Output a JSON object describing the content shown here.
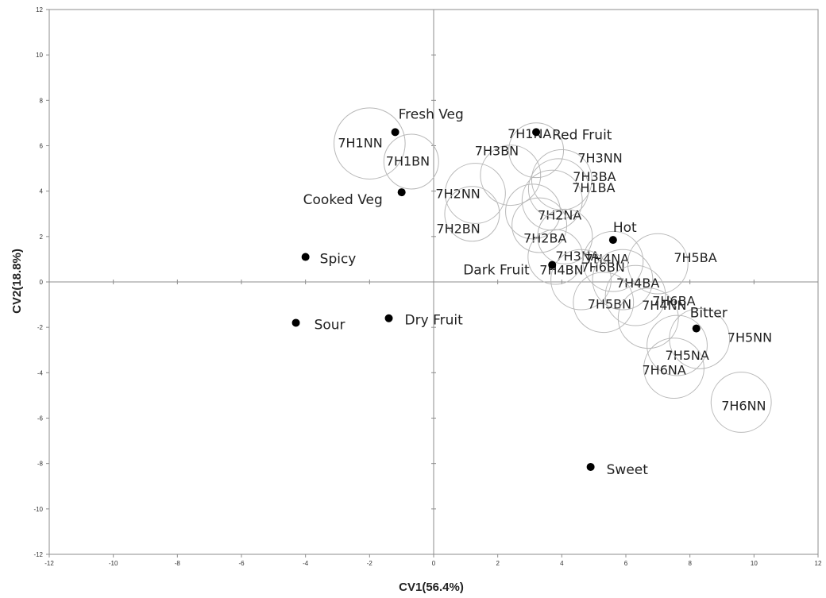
{
  "chart_data": {
    "type": "scatter",
    "xlabel": "CV1(56.4%)",
    "ylabel": "CV2(18.8%)",
    "xlim": [
      -12,
      12
    ],
    "ylim": [
      -12,
      12
    ],
    "x_ticks": [
      -12,
      -10,
      -8,
      -6,
      -4,
      -2,
      0,
      2,
      4,
      6,
      8,
      10,
      12
    ],
    "y_ticks": [
      -12,
      -10,
      -8,
      -6,
      -4,
      -2,
      0,
      2,
      4,
      6,
      8,
      10,
      12
    ],
    "grid": false,
    "legend": "none",
    "attribute_points": [
      {
        "label": "Fresh Veg",
        "x": -1.2,
        "y": 6.6
      },
      {
        "label": "Red Fruit",
        "x": 3.2,
        "y": 6.6
      },
      {
        "label": "Cooked Veg",
        "x": -1.0,
        "y": 3.95
      },
      {
        "label": "Hot",
        "x": 5.6,
        "y": 1.85
      },
      {
        "label": "Spicy",
        "x": -4.0,
        "y": 1.1
      },
      {
        "label": "Dark Fruit",
        "x": 3.7,
        "y": 0.75
      },
      {
        "label": "Sour",
        "x": -4.3,
        "y": -1.8
      },
      {
        "label": "Dry Fruit",
        "x": -1.4,
        "y": -1.6
      },
      {
        "label": "Bitter",
        "x": 8.2,
        "y": -2.05
      },
      {
        "label": "Sweet",
        "x": 4.9,
        "y": -8.15
      }
    ],
    "sample_circles": [
      {
        "label": "7H1NN",
        "x": -2.0,
        "y": 6.1,
        "r": 1.3
      },
      {
        "label": "7H1BN",
        "x": -0.7,
        "y": 5.3,
        "r": 1.0
      },
      {
        "label": "7H1NA",
        "x": 3.2,
        "y": 5.8,
        "r": 1.0
      },
      {
        "label": "7H3NN",
        "x": 4.0,
        "y": 4.5,
        "r": 1.1
      },
      {
        "label": "7H3BN",
        "x": 2.4,
        "y": 4.7,
        "r": 1.1
      },
      {
        "label": "7H3BA",
        "x": 3.9,
        "y": 4.1,
        "r": 1.1
      },
      {
        "label": "7H2NN",
        "x": 1.3,
        "y": 3.9,
        "r": 1.1
      },
      {
        "label": "7H1BA",
        "x": 3.7,
        "y": 3.6,
        "r": 1.1
      },
      {
        "label": "7H2NA",
        "x": 3.1,
        "y": 3.1,
        "r": 1.0
      },
      {
        "label": "7H2BN",
        "x": 1.2,
        "y": 3.0,
        "r": 1.0
      },
      {
        "label": "7H2BA",
        "x": 3.3,
        "y": 2.5,
        "r": 1.0
      },
      {
        "label": "7H3NA",
        "x": 4.1,
        "y": 2.0,
        "r": 1.0
      },
      {
        "label": "7H4BN",
        "x": 3.8,
        "y": 1.1,
        "r": 1.0
      },
      {
        "label": "7H4NA",
        "x": 5.6,
        "y": 0.9,
        "r": 1.1
      },
      {
        "label": "7H5BA",
        "x": 7.0,
        "y": 0.8,
        "r": 1.1
      },
      {
        "label": "7H6BN",
        "x": 4.6,
        "y": 0.1,
        "r": 1.1
      },
      {
        "label": "7H4BA",
        "x": 5.9,
        "y": 0.1,
        "r": 1.1
      },
      {
        "label": "7H4NN",
        "x": 6.3,
        "y": -0.6,
        "r": 1.1
      },
      {
        "label": "7H5BN",
        "x": 5.3,
        "y": -0.9,
        "r": 1.1
      },
      {
        "label": "7H6BA",
        "x": 6.7,
        "y": -1.6,
        "r": 1.1
      },
      {
        "label": "7H5NA",
        "x": 7.6,
        "y": -2.8,
        "r": 1.1
      },
      {
        "label": "7H5NN",
        "x": 8.3,
        "y": -2.5,
        "r": 1.1
      },
      {
        "label": "7H6NA",
        "x": 7.5,
        "y": -3.8,
        "r": 1.1
      },
      {
        "label": "7H6NN",
        "x": 9.6,
        "y": -5.3,
        "r": 1.1
      }
    ]
  },
  "colors": {
    "point": "#000000",
    "circle_stroke": "#b8b8b8",
    "axis": "#8c8c8c",
    "plot_border": "#8c8c8c"
  }
}
